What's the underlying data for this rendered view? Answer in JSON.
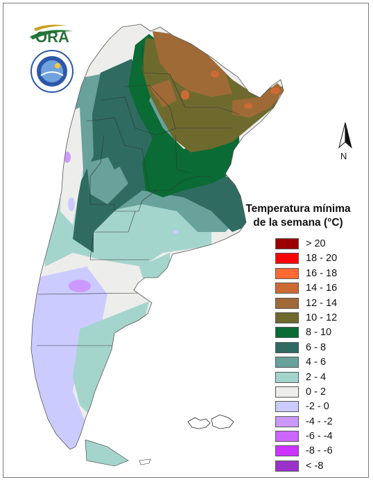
{
  "map": {
    "title_line1": "Temperatura mínima",
    "title_line2": "de la semana (°C)",
    "north_label": "N",
    "logo_text": "ORA",
    "legend": [
      {
        "label": "> 20",
        "color": "#9b0000"
      },
      {
        "label": "18 - 20",
        "color": "#ff0000"
      },
      {
        "label": "16 - 18",
        "color": "#ff6a33"
      },
      {
        "label": "14 - 16",
        "color": "#cd6a34"
      },
      {
        "label": "12 - 14",
        "color": "#9f6a36"
      },
      {
        "label": "10 - 12",
        "color": "#6e6a2e"
      },
      {
        "label": "8 - 10",
        "color": "#0a6b34"
      },
      {
        "label": "6 - 8",
        "color": "#2f6b61"
      },
      {
        "label": "4 - 6",
        "color": "#69a19b"
      },
      {
        "label": "2 - 4",
        "color": "#a4d5cd"
      },
      {
        "label": "0 - 2",
        "color": "#ededeb"
      },
      {
        "label": "-2 - 0",
        "color": "#cbcbff"
      },
      {
        "label": "-4 - -2",
        "color": "#cc99ff"
      },
      {
        "label": "-6 - -4",
        "color": "#cc66ff"
      },
      {
        "label": "-8 - -6",
        "color": "#cc33ff"
      },
      {
        "label": "< -8",
        "color": "#9933cc"
      }
    ]
  }
}
